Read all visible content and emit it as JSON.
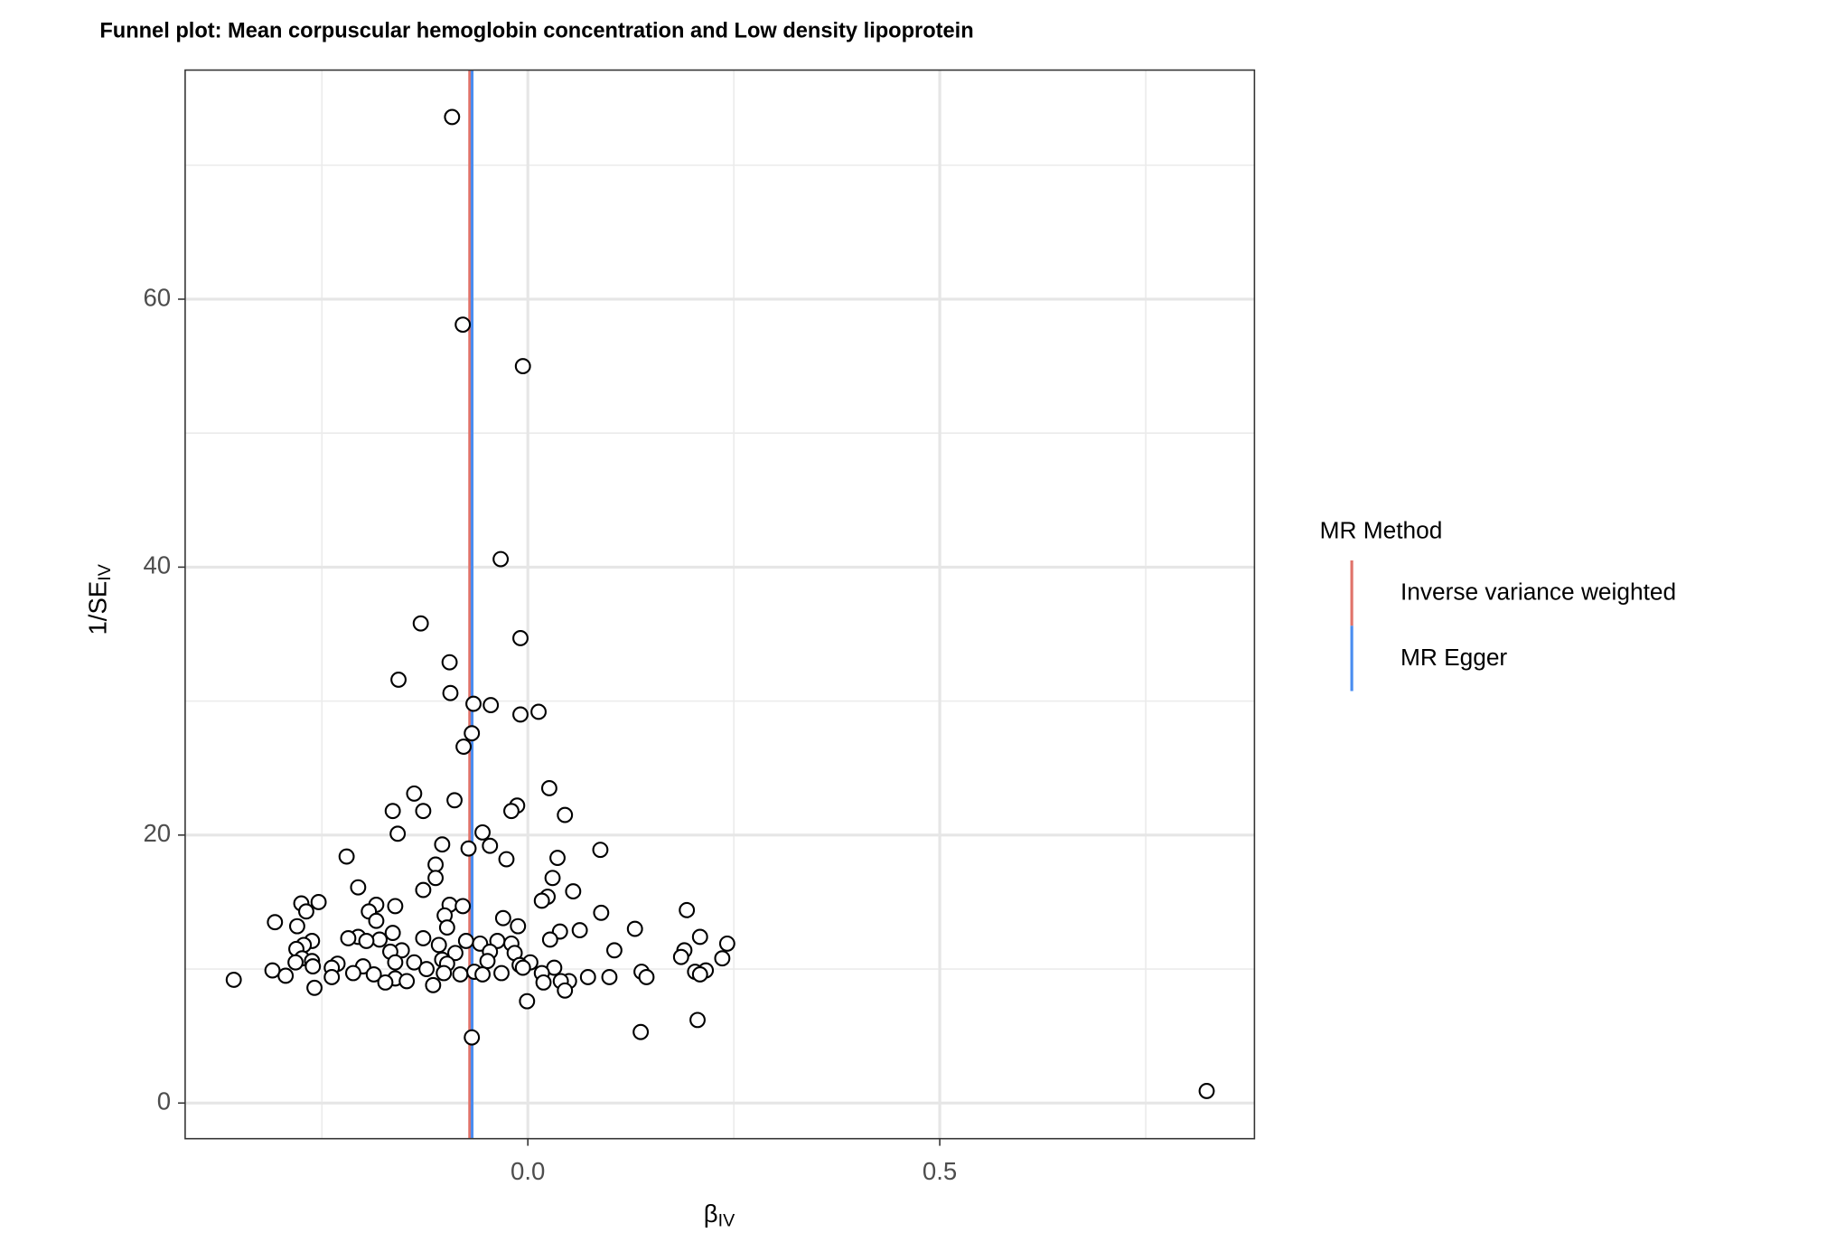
{
  "chart_data": {
    "type": "scatter",
    "title": "Funnel plot: Mean corpuscular hemoglobin concentration and Low density lipoprotein",
    "x_label": "β",
    "x_label_sub": "IV",
    "y_label": "1/SE",
    "y_label_sub": "IV",
    "xlim": [
      -0.416,
      0.882
    ],
    "ylim": [
      -2.66,
      77.1
    ],
    "xticks": [
      {
        "value": 0,
        "label": "0.0"
      },
      {
        "value": 0.5,
        "label": "0.5"
      }
    ],
    "yticks": [
      0,
      20,
      40,
      60
    ],
    "minor_xticks": [
      -0.25,
      0.25,
      0.75
    ],
    "minor_yticks": [
      10,
      30,
      50,
      70
    ],
    "grid": true,
    "points": {
      "x": [
        -0.092,
        -0.079,
        -0.006,
        -0.033,
        -0.13,
        -0.009,
        -0.095,
        -0.157,
        -0.094,
        -0.066,
        -0.045,
        -0.009,
        0.013,
        -0.068,
        -0.078,
        0.026,
        -0.138,
        -0.089,
        -0.013,
        -0.164,
        -0.127,
        -0.02,
        0.045,
        -0.158,
        -0.055,
        -0.046,
        -0.104,
        -0.072,
        0.088,
        -0.22,
        -0.026,
        0.036,
        -0.112,
        0.03,
        -0.112,
        -0.206,
        -0.127,
        0.055,
        0.024,
        0.017,
        -0.275,
        -0.254,
        -0.161,
        -0.184,
        -0.095,
        -0.079,
        0.193,
        -0.269,
        -0.193,
        0.089,
        -0.101,
        -0.03,
        -0.184,
        -0.307,
        -0.28,
        -0.098,
        -0.012,
        0.13,
        0.063,
        0.039,
        -0.164,
        -0.206,
        -0.218,
        -0.18,
        -0.127,
        0.027,
        0.209,
        -0.262,
        -0.075,
        -0.037,
        -0.02,
        0.242,
        -0.272,
        -0.196,
        -0.108,
        -0.058,
        -0.281,
        -0.153,
        0.105,
        0.19,
        -0.167,
        -0.088,
        -0.046,
        -0.016,
        0.186,
        0.236,
        -0.274,
        -0.262,
        -0.104,
        -0.049,
        0.003,
        -0.161,
        -0.138,
        -0.282,
        -0.231,
        -0.098,
        -0.261,
        -0.238,
        -0.2,
        -0.01,
        0.032,
        -0.123,
        -0.006,
        0.203,
        0.216,
        0.138,
        -0.31,
        -0.212,
        -0.065,
        -0.032,
        0.017,
        0.209,
        -0.102,
        -0.082,
        -0.055,
        0.144,
        -0.294,
        -0.187,
        0.073,
        0.099,
        -0.238,
        -0.357,
        -0.161,
        -0.147,
        0.05,
        0.04,
        -0.173,
        0.019,
        -0.115,
        -0.259,
        0.045,
        -0.001,
        0.206,
        0.137,
        -0.068,
        0.824
      ],
      "y": [
        73.6,
        58.1,
        55.0,
        40.6,
        35.8,
        34.7,
        32.9,
        31.6,
        30.6,
        29.8,
        29.7,
        29.0,
        29.2,
        27.6,
        26.6,
        23.5,
        23.1,
        22.6,
        22.2,
        21.8,
        21.8,
        21.8,
        21.5,
        20.1,
        20.2,
        19.2,
        19.3,
        19.0,
        18.9,
        18.4,
        18.2,
        18.3,
        17.8,
        16.8,
        16.8,
        16.1,
        15.9,
        15.8,
        15.4,
        15.1,
        14.9,
        15.0,
        14.7,
        14.8,
        14.8,
        14.7,
        14.4,
        14.3,
        14.3,
        14.2,
        14.0,
        13.8,
        13.6,
        13.5,
        13.2,
        13.1,
        13.2,
        13.0,
        12.9,
        12.8,
        12.7,
        12.4,
        12.3,
        12.2,
        12.3,
        12.2,
        12.4,
        12.1,
        12.1,
        12.1,
        11.9,
        11.9,
        11.8,
        12.1,
        11.8,
        11.9,
        11.5,
        11.4,
        11.4,
        11.4,
        11.3,
        11.2,
        11.3,
        11.2,
        10.9,
        10.8,
        10.8,
        10.6,
        10.7,
        10.6,
        10.5,
        10.5,
        10.5,
        10.5,
        10.4,
        10.4,
        10.2,
        10.1,
        10.2,
        10.3,
        10.1,
        10.0,
        10.1,
        9.8,
        9.9,
        9.8,
        9.9,
        9.7,
        9.8,
        9.7,
        9.7,
        9.6,
        9.7,
        9.6,
        9.6,
        9.4,
        9.5,
        9.6,
        9.4,
        9.4,
        9.4,
        9.2,
        9.3,
        9.1,
        9.1,
        9.1,
        9.0,
        9.0,
        8.8,
        8.6,
        8.4,
        7.6,
        6.2,
        5.3,
        4.9,
        0.9
      ]
    },
    "legend_title": "MR Method",
    "series": [
      {
        "name": "Inverse variance weighted",
        "color": "#E0736A",
        "values": [
          -0.0706
        ]
      },
      {
        "name": "MR Egger",
        "color": "#4A8DF0",
        "values": [
          -0.0677
        ]
      }
    ]
  }
}
